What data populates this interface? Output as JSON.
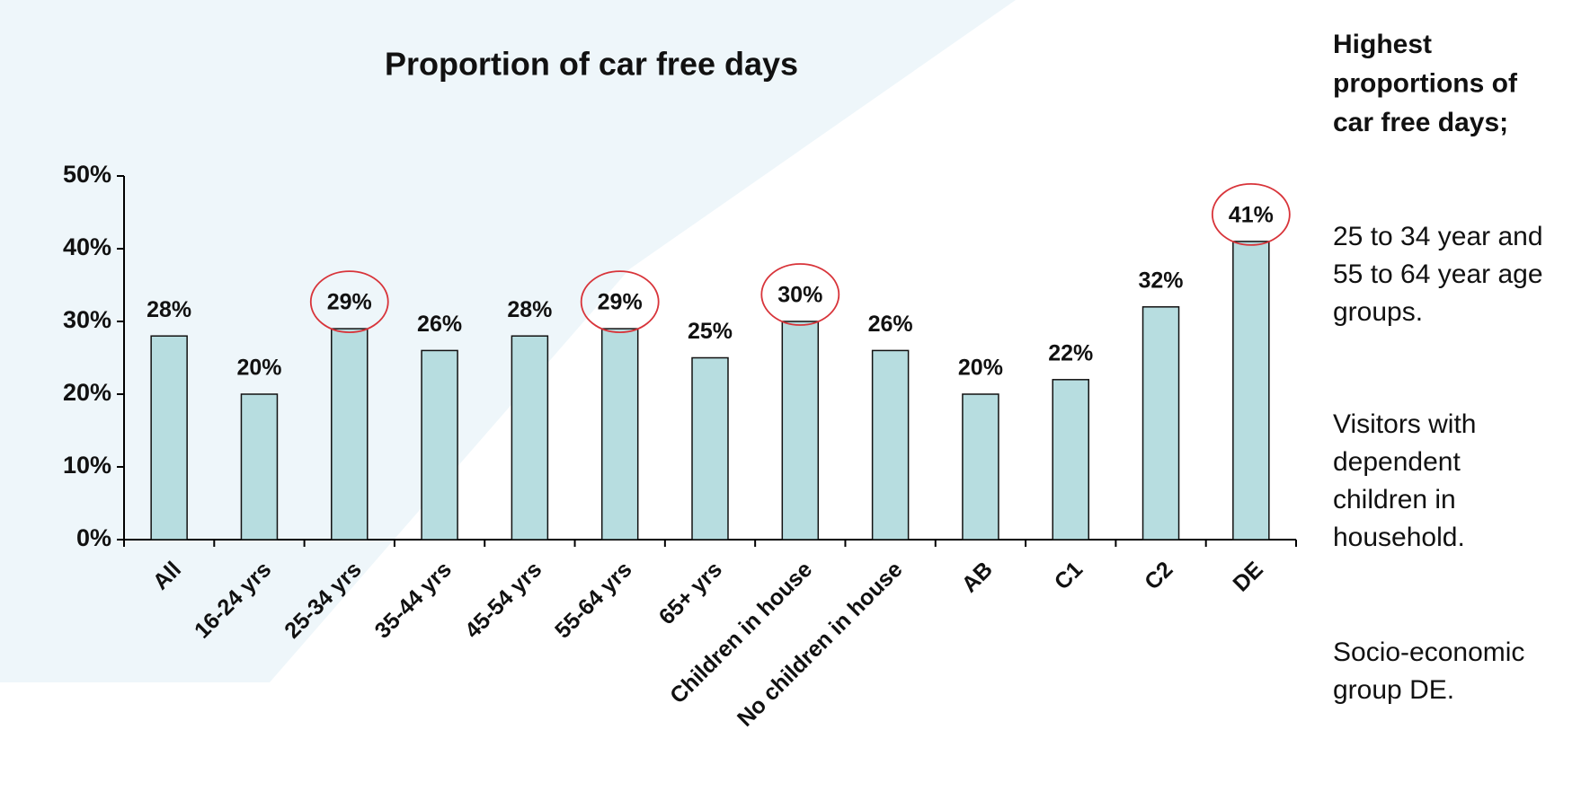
{
  "chart_data": {
    "type": "bar",
    "title": "Proportion of car free days",
    "categories": [
      "All",
      "16-24 yrs",
      "25-34 yrs",
      "35-44 yrs",
      "45-54 yrs",
      "55-64 yrs",
      "65+ yrs",
      "Children in house",
      "No children in house",
      "AB",
      "C1",
      "C2",
      "DE"
    ],
    "values": [
      28,
      20,
      29,
      26,
      28,
      29,
      25,
      30,
      26,
      20,
      22,
      32,
      41
    ],
    "value_labels": [
      "28%",
      "20%",
      "29%",
      "26%",
      "28%",
      "29%",
      "25%",
      "30%",
      "26%",
      "20%",
      "22%",
      "32%",
      "41%"
    ],
    "color": "#b7dde0",
    "highlighted": [
      2,
      5,
      7,
      12
    ],
    "highlight_color": "#d8343a",
    "ylim": [
      0,
      50
    ],
    "yticks": [
      {
        "value": 0,
        "label": "0%"
      },
      {
        "value": 10,
        "label": "10%"
      },
      {
        "value": 20,
        "label": "20%"
      },
      {
        "value": 30,
        "label": "30%"
      },
      {
        "value": 40,
        "label": "40%"
      },
      {
        "value": 50,
        "label": "50%"
      }
    ],
    "side_title": [
      "Highest",
      "proportions of",
      "car free days;"
    ],
    "side_notes": [
      [
        "25 to 34 year and",
        "55 to 64 year age",
        "groups."
      ],
      [
        "Visitors with",
        "dependent",
        "children in",
        "household."
      ],
      [
        "Socio-economic",
        "group DE."
      ]
    ]
  }
}
